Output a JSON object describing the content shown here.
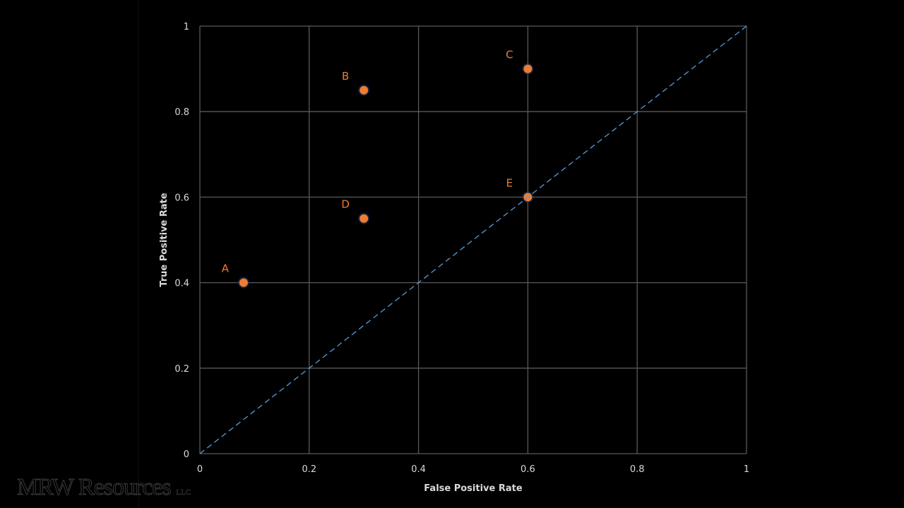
{
  "chart_data": {
    "type": "scatter",
    "title": "",
    "xlabel": "False Positive Rate",
    "ylabel": "True Positive Rate",
    "xlim": [
      0,
      1
    ],
    "ylim": [
      0,
      1
    ],
    "x_ticks": [
      "0",
      "0.2",
      "0.4",
      "0.6",
      "0.8",
      "1"
    ],
    "y_ticks": [
      "0",
      "0.2",
      "0.4",
      "0.6",
      "0.8",
      "1"
    ],
    "grid": true,
    "points": [
      {
        "label": "A",
        "x": 0.08,
        "y": 0.4
      },
      {
        "label": "B",
        "x": 0.3,
        "y": 0.85
      },
      {
        "label": "C",
        "x": 0.6,
        "y": 0.9
      },
      {
        "label": "D",
        "x": 0.3,
        "y": 0.55
      },
      {
        "label": "E",
        "x": 0.6,
        "y": 0.6
      }
    ],
    "reference_line": {
      "type": "diagonal",
      "from": [
        0,
        0
      ],
      "to": [
        1,
        1
      ],
      "style": "dashed",
      "color": "#5b9bd5"
    },
    "colors": {
      "point": "#ed7d31",
      "point_label": "#ed7d31",
      "grid": "#595959",
      "text": "#d9d9d9",
      "background": "#000000"
    }
  },
  "watermark": {
    "text": "MRW Resources",
    "suffix": "LLC"
  }
}
